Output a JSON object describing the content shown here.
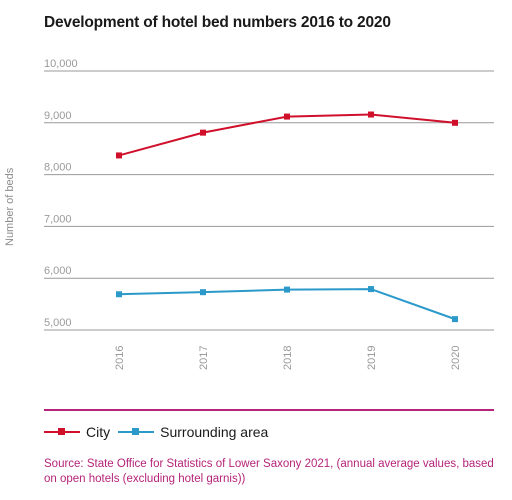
{
  "title": "Development of hotel bed numbers 2016 to 2020",
  "ylabel": "Number of beds",
  "source": "Source: State Office for Statistics of Lower Saxony 2021, (annual average values, based on open hotels (excluding hotel garnis))",
  "colors": {
    "city": "#d0102b",
    "surrounding": "#2b9acb",
    "grid": "#999999",
    "tick": "#9a9a9a",
    "accent": "#b5247a"
  },
  "chart_data": {
    "type": "line",
    "x": [
      "2016",
      "2017",
      "2018",
      "2019",
      "2020"
    ],
    "yticks": [
      "10,000",
      "9,000",
      "8,000",
      "7,000",
      "6,000",
      "5,000"
    ],
    "ylim": [
      5000,
      10000
    ],
    "series": [
      {
        "name": "City",
        "color": "#d0102b",
        "values": [
          8370,
          8810,
          9120,
          9160,
          9000
        ]
      },
      {
        "name": "Surrounding area",
        "color": "#2b9acb",
        "values": [
          5690,
          5730,
          5780,
          5790,
          5210
        ]
      }
    ],
    "grid": true,
    "legend": "bottom-left"
  }
}
